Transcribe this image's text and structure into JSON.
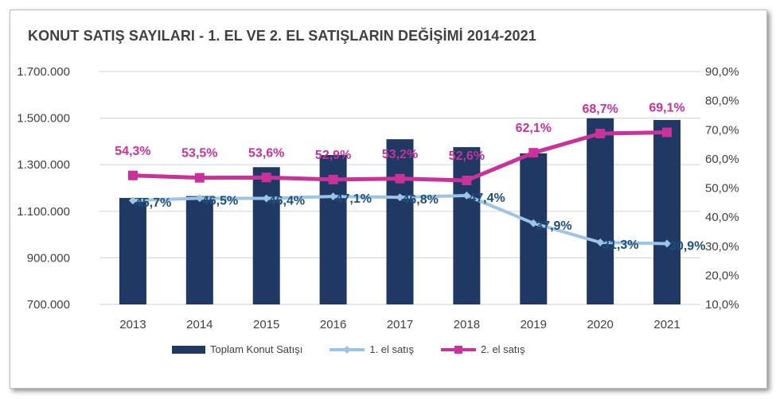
{
  "chart_data": {
    "type": "bar+line",
    "title": "KONUT SATIŞ SAYILARI - 1. EL VE 2. EL SATIŞLARIN DEĞİŞİMİ 2014-2021",
    "categories": [
      "2013",
      "2014",
      "2015",
      "2016",
      "2017",
      "2018",
      "2019",
      "2020",
      "2021"
    ],
    "y_left": {
      "range": [
        700000,
        1700000
      ],
      "ticks": [
        "700.000",
        "900.000",
        "1.100.000",
        "1.300.000",
        "1.500.000",
        "1.700.000"
      ]
    },
    "y_right": {
      "range": [
        10,
        90
      ],
      "ticks": [
        "10,0%",
        "20,0%",
        "30,0%",
        "40,0%",
        "50,0%",
        "60,0%",
        "70,0%",
        "80,0%",
        "90,0%"
      ]
    },
    "grid": true,
    "legend_position": "bottom",
    "series": [
      {
        "name": "Toplam Konut Satışı",
        "type": "bar",
        "axis": "left",
        "color": "#1f3864",
        "values": [
          1157190,
          1165381,
          1289320,
          1341453,
          1409314,
          1375398,
          1348729,
          1499316,
          1491856
        ]
      },
      {
        "name": "1. el satış",
        "type": "line",
        "axis": "right",
        "color": "#9dc3e6",
        "label_color": "#1f4e79",
        "values": [
          45.7,
          46.5,
          46.4,
          47.1,
          46.8,
          47.4,
          37.9,
          31.3,
          30.9
        ],
        "labels": [
          "45,7%",
          "46,5%",
          "46,4%",
          "47,1%",
          "46,8%",
          "47,4%",
          "37,9%",
          "31,3%",
          "30,9%"
        ]
      },
      {
        "name": "2. el satış",
        "type": "line",
        "axis": "right",
        "color": "#c8329a",
        "label_color": "#c8329a",
        "values": [
          54.3,
          53.5,
          53.6,
          52.9,
          53.2,
          52.6,
          62.1,
          68.7,
          69.1
        ],
        "labels": [
          "54,3%",
          "53,5%",
          "53,6%",
          "52,9%",
          "53,2%",
          "52,6%",
          "62,1%",
          "68,7%",
          "69,1%"
        ]
      }
    ]
  }
}
